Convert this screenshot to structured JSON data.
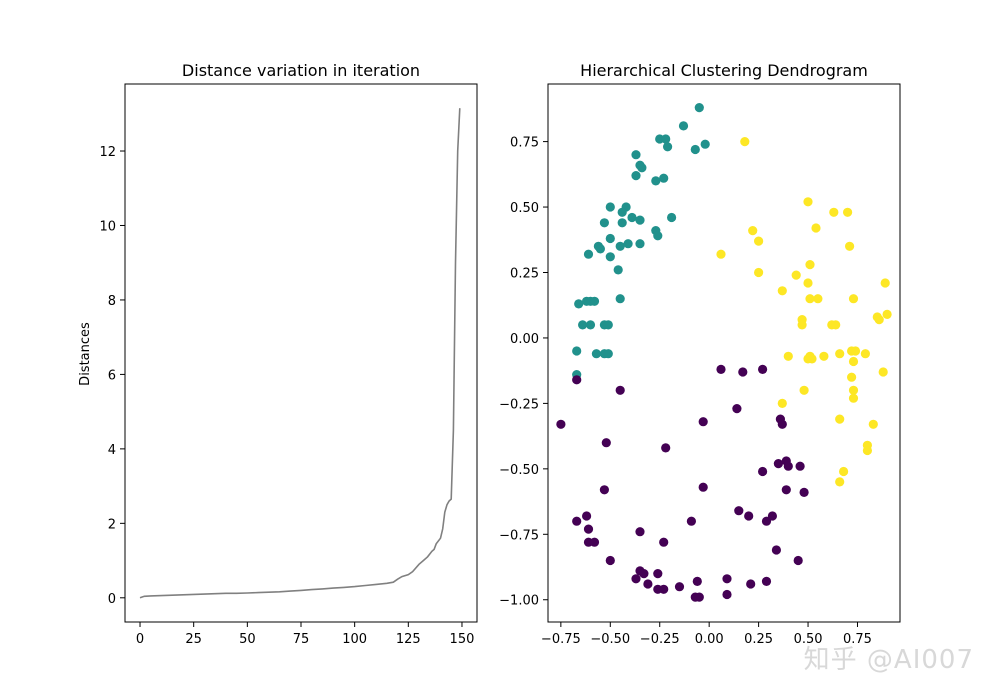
{
  "chart_data": [
    {
      "type": "line",
      "title": "Distance variation in iteration",
      "xlabel": "",
      "ylabel": "Distances",
      "xlim": [
        -7,
        157
      ],
      "ylim": [
        -0.65,
        13.8
      ],
      "x_ticks": [
        0,
        25,
        50,
        75,
        100,
        125,
        150
      ],
      "y_ticks": [
        0,
        2,
        4,
        6,
        8,
        10,
        12
      ],
      "grid": false,
      "line_color": "#808080",
      "series": [
        {
          "x": [
            0,
            2,
            5,
            10,
            15,
            20,
            25,
            30,
            35,
            40,
            45,
            50,
            55,
            60,
            65,
            70,
            75,
            80,
            85,
            90,
            95,
            100,
            105,
            110,
            115,
            118,
            120,
            122,
            125,
            127,
            130,
            132,
            134,
            136,
            137,
            138,
            140,
            141,
            142,
            143,
            144,
            145,
            146,
            147,
            148,
            149
          ],
          "y": [
            0.0,
            0.04,
            0.05,
            0.06,
            0.07,
            0.08,
            0.09,
            0.1,
            0.11,
            0.12,
            0.12,
            0.13,
            0.14,
            0.15,
            0.16,
            0.18,
            0.2,
            0.22,
            0.24,
            0.26,
            0.28,
            0.3,
            0.33,
            0.36,
            0.39,
            0.42,
            0.5,
            0.57,
            0.62,
            0.7,
            0.9,
            1.0,
            1.1,
            1.25,
            1.3,
            1.45,
            1.6,
            1.85,
            2.3,
            2.5,
            2.6,
            2.65,
            4.5,
            9.0,
            12.0,
            13.15
          ]
        }
      ]
    },
    {
      "type": "scatter",
      "title": "Hierarchical Clustering Dendrogram",
      "xlabel": "",
      "ylabel": "",
      "xlim": [
        -0.815,
        0.965
      ],
      "ylim": [
        -1.085,
        0.97
      ],
      "x_ticks": [
        -0.75,
        -0.5,
        -0.25,
        0.0,
        0.25,
        0.5,
        0.75
      ],
      "y_ticks": [
        -1.0,
        -0.75,
        -0.5,
        -0.25,
        0.0,
        0.25,
        0.5,
        0.75
      ],
      "x_tick_labels": [
        "−0.75",
        "−0.50",
        "−0.25",
        "0.00",
        "0.25",
        "0.50",
        "0.75"
      ],
      "y_tick_labels": [
        "−1.00",
        "−0.75",
        "−0.50",
        "−0.25",
        "0.00",
        "0.25",
        "0.50",
        "0.75"
      ],
      "grid": false,
      "cluster_colors": [
        "#440154",
        "#21918c",
        "#fde725"
      ],
      "points": [
        [
          -0.05,
          0.88,
          1
        ],
        [
          -0.13,
          0.81,
          1
        ],
        [
          -0.25,
          0.76,
          1
        ],
        [
          -0.22,
          0.76,
          1
        ],
        [
          -0.21,
          0.73,
          1
        ],
        [
          -0.07,
          0.72,
          1
        ],
        [
          -0.02,
          0.74,
          1
        ],
        [
          -0.37,
          0.7,
          1
        ],
        [
          -0.35,
          0.66,
          1
        ],
        [
          -0.34,
          0.65,
          1
        ],
        [
          -0.37,
          0.62,
          1
        ],
        [
          -0.27,
          0.6,
          1
        ],
        [
          -0.23,
          0.61,
          1
        ],
        [
          -0.42,
          0.5,
          1
        ],
        [
          -0.44,
          0.48,
          1
        ],
        [
          -0.5,
          0.5,
          1
        ],
        [
          -0.39,
          0.46,
          1
        ],
        [
          -0.35,
          0.45,
          1
        ],
        [
          -0.53,
          0.44,
          1
        ],
        [
          -0.44,
          0.44,
          1
        ],
        [
          -0.19,
          0.46,
          1
        ],
        [
          -0.27,
          0.41,
          1
        ],
        [
          -0.26,
          0.39,
          1
        ],
        [
          -0.5,
          0.38,
          1
        ],
        [
          -0.45,
          0.35,
          1
        ],
        [
          -0.41,
          0.36,
          1
        ],
        [
          -0.35,
          0.36,
          1
        ],
        [
          -0.56,
          0.35,
          1
        ],
        [
          -0.55,
          0.34,
          1
        ],
        [
          -0.61,
          0.32,
          1
        ],
        [
          -0.5,
          0.31,
          1
        ],
        [
          -0.46,
          0.26,
          1
        ],
        [
          -0.45,
          0.15,
          1
        ],
        [
          -0.6,
          0.14,
          1
        ],
        [
          -0.62,
          0.14,
          1
        ],
        [
          -0.58,
          0.14,
          1
        ],
        [
          -0.66,
          0.13,
          1
        ],
        [
          -0.6,
          0.05,
          1
        ],
        [
          -0.53,
          0.05,
          1
        ],
        [
          -0.51,
          0.05,
          1
        ],
        [
          -0.64,
          0.05,
          1
        ],
        [
          -0.67,
          -0.05,
          1
        ],
        [
          -0.57,
          -0.06,
          1
        ],
        [
          -0.53,
          -0.06,
          1
        ],
        [
          -0.51,
          -0.06,
          1
        ],
        [
          -0.67,
          -0.14,
          1
        ],
        [
          0.18,
          0.75,
          2
        ],
        [
          0.5,
          0.52,
          2
        ],
        [
          0.63,
          0.48,
          2
        ],
        [
          0.7,
          0.48,
          2
        ],
        [
          0.54,
          0.42,
          2
        ],
        [
          0.22,
          0.41,
          2
        ],
        [
          0.25,
          0.37,
          2
        ],
        [
          0.71,
          0.35,
          2
        ],
        [
          0.06,
          0.32,
          2
        ],
        [
          0.51,
          0.28,
          2
        ],
        [
          0.25,
          0.25,
          2
        ],
        [
          0.44,
          0.24,
          2
        ],
        [
          0.5,
          0.21,
          2
        ],
        [
          0.89,
          0.21,
          2
        ],
        [
          0.37,
          0.18,
          2
        ],
        [
          0.51,
          0.15,
          2
        ],
        [
          0.55,
          0.15,
          2
        ],
        [
          0.73,
          0.15,
          2
        ],
        [
          0.62,
          0.05,
          2
        ],
        [
          0.47,
          0.07,
          2
        ],
        [
          0.47,
          0.05,
          2
        ],
        [
          0.64,
          0.05,
          2
        ],
        [
          0.85,
          0.08,
          2
        ],
        [
          0.86,
          0.07,
          2
        ],
        [
          0.9,
          0.09,
          2
        ],
        [
          0.51,
          -0.07,
          2
        ],
        [
          0.52,
          -0.08,
          2
        ],
        [
          0.5,
          -0.08,
          2
        ],
        [
          0.4,
          -0.07,
          2
        ],
        [
          0.58,
          -0.07,
          2
        ],
        [
          0.66,
          -0.06,
          2
        ],
        [
          0.72,
          -0.05,
          2
        ],
        [
          0.74,
          -0.05,
          2
        ],
        [
          0.79,
          -0.06,
          2
        ],
        [
          0.73,
          -0.09,
          2
        ],
        [
          0.88,
          -0.13,
          2
        ],
        [
          0.72,
          -0.15,
          2
        ],
        [
          0.73,
          -0.2,
          2
        ],
        [
          0.73,
          -0.23,
          2
        ],
        [
          0.48,
          -0.2,
          2
        ],
        [
          0.37,
          -0.25,
          2
        ],
        [
          0.66,
          -0.31,
          2
        ],
        [
          0.83,
          -0.33,
          2
        ],
        [
          0.8,
          -0.41,
          2
        ],
        [
          0.8,
          -0.43,
          2
        ],
        [
          0.68,
          -0.51,
          2
        ],
        [
          0.66,
          -0.55,
          2
        ],
        [
          -0.67,
          -0.16,
          0
        ],
        [
          -0.45,
          -0.2,
          0
        ],
        [
          -0.75,
          -0.33,
          0
        ],
        [
          0.06,
          -0.12,
          0
        ],
        [
          0.17,
          -0.13,
          0
        ],
        [
          0.27,
          -0.12,
          0
        ],
        [
          0.14,
          -0.27,
          0
        ],
        [
          0.36,
          -0.31,
          0
        ],
        [
          0.37,
          -0.33,
          0
        ],
        [
          -0.03,
          -0.32,
          0
        ],
        [
          -0.52,
          -0.4,
          0
        ],
        [
          -0.22,
          -0.42,
          0
        ],
        [
          0.35,
          -0.48,
          0
        ],
        [
          0.39,
          -0.47,
          0
        ],
        [
          0.4,
          -0.49,
          0
        ],
        [
          0.27,
          -0.51,
          0
        ],
        [
          0.46,
          -0.49,
          0
        ],
        [
          -0.03,
          -0.57,
          0
        ],
        [
          -0.53,
          -0.58,
          0
        ],
        [
          0.39,
          -0.58,
          0
        ],
        [
          0.48,
          -0.59,
          0
        ],
        [
          -0.62,
          -0.68,
          0
        ],
        [
          -0.67,
          -0.7,
          0
        ],
        [
          0.15,
          -0.66,
          0
        ],
        [
          0.2,
          -0.68,
          0
        ],
        [
          0.29,
          -0.7,
          0
        ],
        [
          0.32,
          -0.68,
          0
        ],
        [
          -0.09,
          -0.7,
          0
        ],
        [
          -0.35,
          -0.74,
          0
        ],
        [
          -0.61,
          -0.73,
          0
        ],
        [
          -0.61,
          -0.78,
          0
        ],
        [
          -0.58,
          -0.78,
          0
        ],
        [
          -0.23,
          -0.78,
          0
        ],
        [
          -0.5,
          -0.85,
          0
        ],
        [
          0.34,
          -0.81,
          0
        ],
        [
          0.45,
          -0.85,
          0
        ],
        [
          -0.35,
          -0.89,
          0
        ],
        [
          -0.33,
          -0.9,
          0
        ],
        [
          -0.26,
          -0.9,
          0
        ],
        [
          -0.37,
          -0.92,
          0
        ],
        [
          -0.31,
          -0.94,
          0
        ],
        [
          -0.26,
          -0.96,
          0
        ],
        [
          -0.23,
          -0.96,
          0
        ],
        [
          -0.15,
          -0.95,
          0
        ],
        [
          -0.06,
          -0.93,
          0
        ],
        [
          0.09,
          -0.92,
          0
        ],
        [
          0.21,
          -0.94,
          0
        ],
        [
          0.29,
          -0.93,
          0
        ],
        [
          -0.07,
          -0.99,
          0
        ],
        [
          -0.05,
          -0.99,
          0
        ],
        [
          0.09,
          -0.98,
          0
        ]
      ]
    }
  ],
  "watermark": "知乎 @AI007"
}
